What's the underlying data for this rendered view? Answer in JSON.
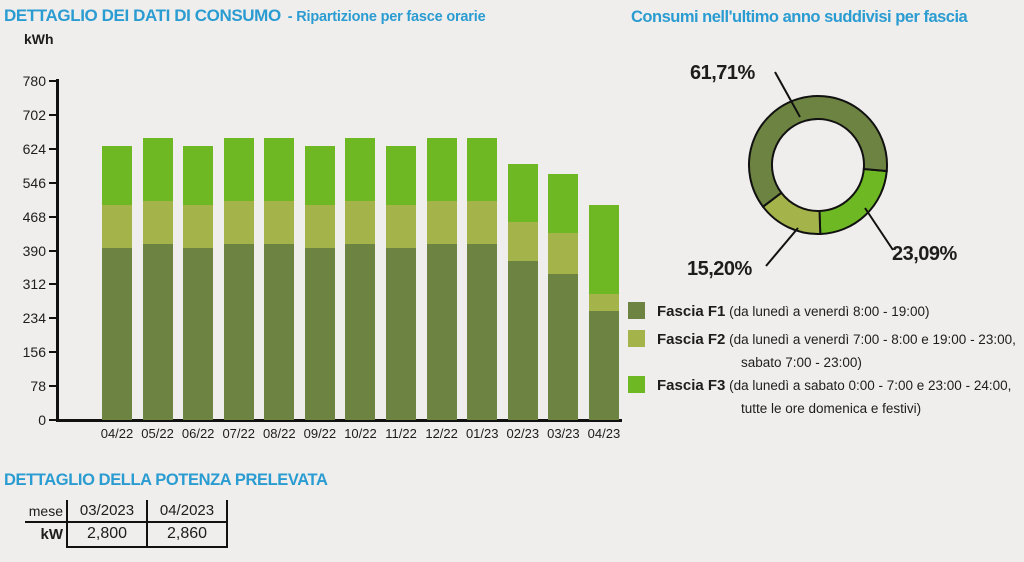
{
  "colors": {
    "background": "#efeeec",
    "accent_blue": "#2b9cd1",
    "text_dark": "#1d1d1b",
    "axis_black": "#111111",
    "f1": "#6d8342",
    "f2": "#a4b44a",
    "f3": "#6eb824"
  },
  "header": {
    "title": "DETTAGLIO DEI DATI DI CONSUMO",
    "subtitle": "- Ripartizione per fasce orarie"
  },
  "chart_data": [
    {
      "type": "bar",
      "stacked": true,
      "title": "DETTAGLIO DEI DATI DI CONSUMO - Ripartizione per fasce orarie",
      "unit_label": "kWh",
      "categories": [
        "04/22",
        "05/22",
        "06/22",
        "07/22",
        "08/22",
        "09/22",
        "10/22",
        "11/22",
        "12/22",
        "01/23",
        "02/23",
        "03/23",
        "04/23"
      ],
      "series": [
        {
          "name": "Fascia F1",
          "color_key": "f1",
          "values": [
            395,
            405,
            395,
            405,
            405,
            395,
            405,
            395,
            405,
            405,
            365,
            335,
            250
          ]
        },
        {
          "name": "Fascia F2",
          "color_key": "f2",
          "values": [
            100,
            100,
            100,
            100,
            100,
            100,
            100,
            100,
            100,
            100,
            90,
            95,
            40
          ]
        },
        {
          "name": "Fascia F3",
          "color_key": "f3",
          "values": [
            135,
            145,
            135,
            145,
            145,
            135,
            145,
            135,
            145,
            145,
            135,
            135,
            205
          ]
        }
      ],
      "ylim": [
        0,
        780
      ],
      "y_ticks": [
        780,
        702,
        624,
        546,
        468,
        390,
        312,
        234,
        156,
        78,
        0
      ],
      "grid": false,
      "legend_position": "right"
    },
    {
      "type": "donut",
      "title": "Consumi nell'ultimo anno suddivisi per fascia",
      "labels": [
        "Fascia F1",
        "Fascia F2",
        "Fascia F3"
      ],
      "values": [
        61.71,
        15.2,
        23.09
      ],
      "value_labels": [
        "61,71%",
        "15,20%",
        "23,09%"
      ],
      "color_keys": [
        "f1",
        "f2",
        "f3"
      ],
      "start_angle_deg": 95,
      "draw_order": [
        2,
        1,
        0
      ]
    }
  ],
  "legend": {
    "items": [
      {
        "name": "Fascia F1",
        "color_key": "f1",
        "desc_line1": "(da lunedì a venerdì 8:00 - 19:00)"
      },
      {
        "name": "Fascia F2",
        "color_key": "f2",
        "desc_line1": "(da lunedì a venerdì 7:00 - 8:00 e 19:00 - 23:00,",
        "desc_line2": "sabato 7:00 - 23:00)"
      },
      {
        "name": "Fascia F3",
        "color_key": "f3",
        "desc_line1": "(da lunedì a sabato 0:00 - 7:00 e 23:00 - 24:00,",
        "desc_line2": "tutte le ore domenica e festivi)"
      }
    ]
  },
  "power_table": {
    "title": "DETTAGLIO DELLA POTENZA PRELEVATA",
    "rows": [
      [
        "mese",
        "03/2023",
        "04/2023"
      ],
      [
        "kW",
        "2,800",
        "2,860"
      ]
    ]
  }
}
